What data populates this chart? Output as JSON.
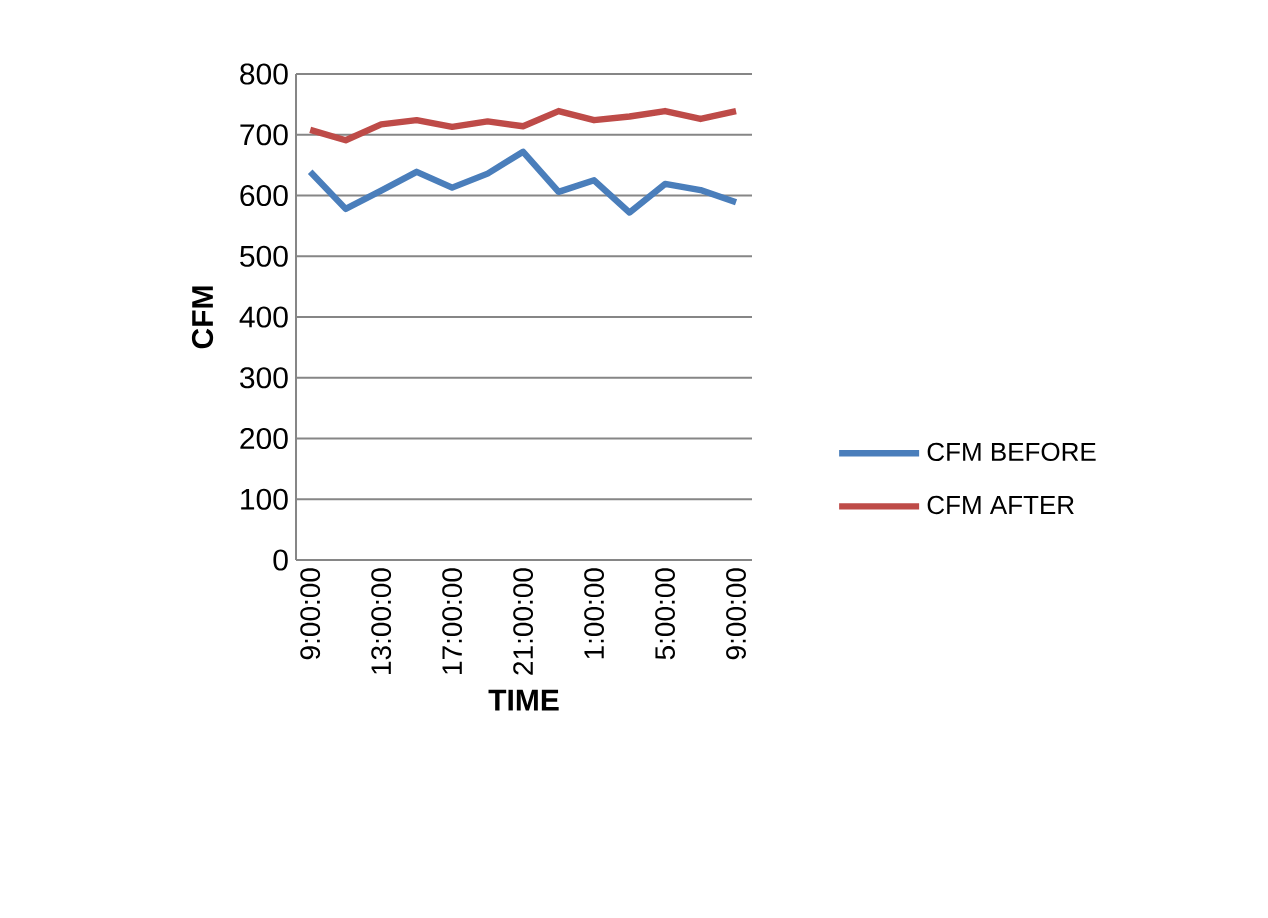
{
  "chart_data": {
    "type": "line",
    "xlabel": "TIME",
    "ylabel": "CFM",
    "categories": [
      "9:00:00",
      null,
      "13:00:00",
      null,
      "17:00:00",
      null,
      "21:00:00",
      null,
      "1:00:00",
      null,
      "5:00:00",
      null,
      "9:00:00"
    ],
    "series": [
      {
        "name": "CFM BEFORE",
        "color": "#4a7ebb",
        "values": [
          639,
          578,
          608,
          639,
          613,
          636,
          672,
          606,
          625,
          572,
          619,
          609,
          589
        ]
      },
      {
        "name": "CFM AFTER",
        "color": "#be4b48",
        "values": [
          708,
          691,
          717,
          724,
          713,
          722,
          714,
          739,
          724,
          730,
          739,
          726,
          739
        ]
      }
    ],
    "ylim": [
      0,
      800
    ],
    "yticks": [
      0,
      100,
      200,
      300,
      400,
      500,
      600,
      700,
      800
    ],
    "grid": "y",
    "legend": "right",
    "marker": "none",
    "line_style": "solid"
  }
}
